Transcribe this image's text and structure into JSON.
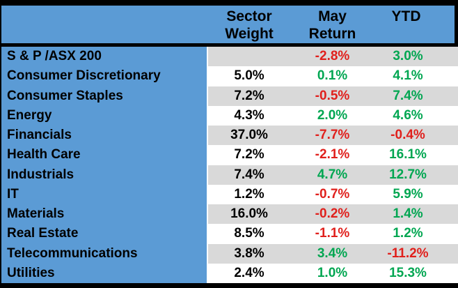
{
  "chart_data": {
    "type": "table",
    "header": [
      "Sector Weight",
      "May Return",
      "YTD"
    ],
    "rows": [
      {
        "sector": "S & P /ASX 200",
        "weight": "",
        "may_return": "-2.8%",
        "ytd": "3.0%"
      },
      {
        "sector": "Consumer Discretionary",
        "weight": "5.0%",
        "may_return": "0.1%",
        "ytd": "4.1%"
      },
      {
        "sector": "Consumer Staples",
        "weight": "7.2%",
        "may_return": "-0.5%",
        "ytd": "7.4%"
      },
      {
        "sector": "Energy",
        "weight": "4.3%",
        "may_return": "2.0%",
        "ytd": "4.6%"
      },
      {
        "sector": "Financials",
        "weight": "37.0%",
        "may_return": "-7.7%",
        "ytd": "-0.4%"
      },
      {
        "sector": "Health Care",
        "weight": "7.2%",
        "may_return": "-2.1%",
        "ytd": "16.1%"
      },
      {
        "sector": "Industrials",
        "weight": "7.4%",
        "may_return": "4.7%",
        "ytd": "12.7%"
      },
      {
        "sector": "IT",
        "weight": "1.2%",
        "may_return": "-0.7%",
        "ytd": "5.9%"
      },
      {
        "sector": "Materials",
        "weight": "16.0%",
        "may_return": "-0.2%",
        "ytd": "1.4%"
      },
      {
        "sector": "Real Estate",
        "weight": "8.5%",
        "may_return": "-1.1%",
        "ytd": "1.2%"
      },
      {
        "sector": "Telecommunications",
        "weight": "3.8%",
        "may_return": "3.4%",
        "ytd": "-11.2%"
      },
      {
        "sector": "Utilities",
        "weight": "2.4%",
        "may_return": "1.0%",
        "ytd": "15.3%"
      }
    ],
    "layout_hints": {
      "alternating_rows": true,
      "first_row_shaded": true,
      "label_column_shaded": true
    }
  },
  "colors": {
    "header_bg": "#5B9BD5",
    "label_column_bg": "#5B9BD5",
    "alt_row_bg": "#D9D9D9",
    "positive_value": "#00A651",
    "negative_value": "#E0201C",
    "border": "#000000"
  }
}
